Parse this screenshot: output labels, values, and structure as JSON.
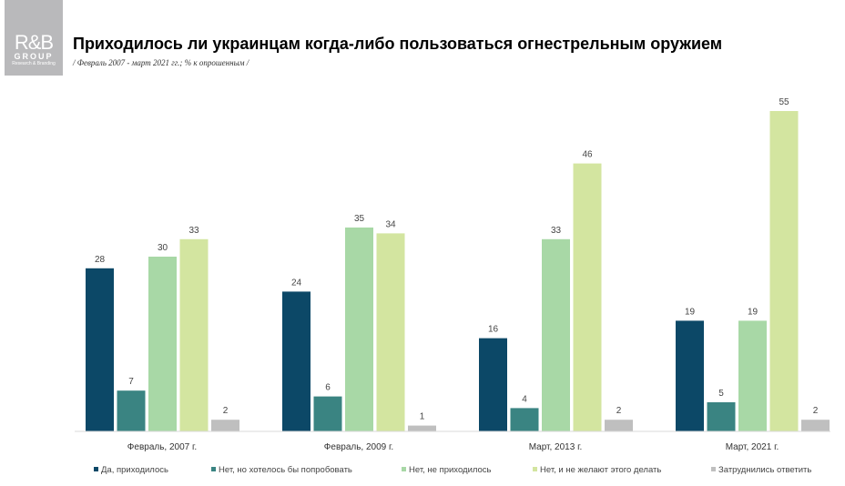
{
  "logo": {
    "line1": "R&B",
    "line2": "GROUP",
    "line3": "Research & Branding"
  },
  "chart_data": {
    "type": "bar",
    "title": "Приходилось ли украинцам когда-либо пользоваться огнестрельным оружием",
    "subtitle": "/ Февраль 2007 - март 2021 гг.; % к опрошенным /",
    "categories": [
      "Февраль, 2007 г.",
      "Февраль, 2009 г.",
      "Март, 2013 г.",
      "Март, 2021 г."
    ],
    "series": [
      {
        "name": "Да, приходилось",
        "color": "#0c4867",
        "values": [
          28,
          24,
          16,
          19
        ]
      },
      {
        "name": "Нет, но хотелось бы попробовать",
        "color": "#3a8482",
        "values": [
          7,
          6,
          4,
          5
        ]
      },
      {
        "name": "Нет, не приходилось",
        "color": "#a8d8a6",
        "values": [
          30,
          35,
          33,
          19
        ]
      },
      {
        "name": "Нет, и не желают этого делать",
        "color": "#d3e5a0",
        "values": [
          33,
          34,
          46,
          55
        ]
      },
      {
        "name": "Затруднились ответить",
        "color": "#bfbfbf",
        "values": [
          2,
          1,
          2,
          2
        ]
      }
    ],
    "ylim": [
      0,
      55
    ],
    "grid": false,
    "legend": "bottom"
  }
}
